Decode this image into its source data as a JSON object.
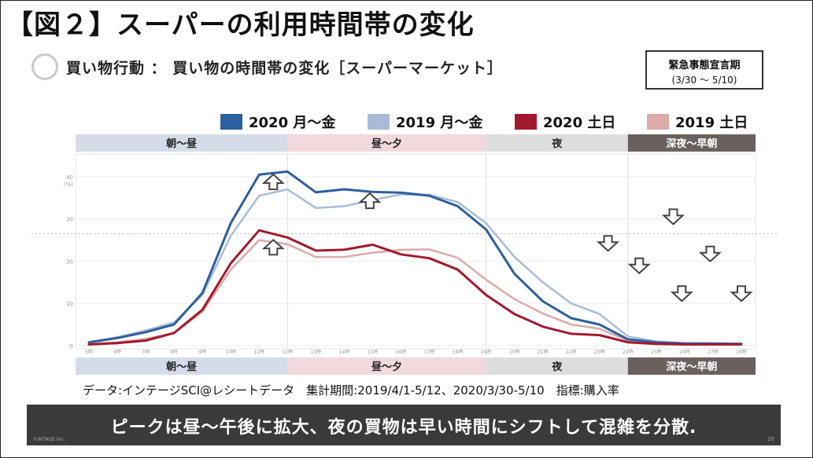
{
  "figure_title": "【図２】スーパーの利用時間帯の変化",
  "subtitle": "買い物行動 ： 買い物の時間帯の変化［スーパーマーケット］",
  "badge": {
    "line1": "緊急事態宣言期",
    "line2": "(3/30 ～ 5/10)"
  },
  "footer_note": "データ:インテージSCI@レシートデータ　集計期間:2019/4/1-5/12、2020/3/30-5/10　指標:購入率",
  "banner": "ピークは昼～午後に拡大、夜の買物は早い時間にシフトして混雑を分散.",
  "copyright": "©INTAGE Inc.",
  "page_number": "20",
  "chart_data": {
    "type": "line",
    "ylabel": "(%)",
    "ylim": [
      0,
      45
    ],
    "yticks": [
      0,
      10,
      20,
      30,
      40
    ],
    "categories": [
      "5時",
      "6時",
      "7時",
      "8時",
      "9時",
      "10時",
      "11時",
      "12時",
      "13時",
      "14時",
      "15時",
      "16時",
      "17時",
      "18時",
      "19時",
      "20時",
      "21時",
      "22時",
      "23時",
      "24時",
      "25時",
      "26時",
      "27時",
      "28時"
    ],
    "series": [
      {
        "name": "2020 月～金",
        "color": "#2c5f9e",
        "width": 3,
        "values": [
          0.8,
          1.8,
          3.2,
          5.0,
          12.5,
          29.0,
          40.5,
          41.2,
          36.3,
          37.0,
          36.4,
          36.2,
          35.5,
          33.0,
          27.5,
          17.0,
          10.5,
          6.5,
          5.0,
          1.5,
          0.8,
          0.5,
          0.5,
          0.4
        ]
      },
      {
        "name": "2019 月～金",
        "color": "#a8bcd8",
        "width": 2.5,
        "values": [
          0.8,
          2.0,
          3.6,
          5.5,
          12.0,
          26.0,
          35.5,
          37.0,
          32.6,
          33.0,
          34.5,
          35.8,
          35.7,
          34.0,
          29.0,
          21.0,
          15.0,
          10.0,
          7.5,
          2.2,
          1.0,
          0.6,
          0.5,
          0.5
        ]
      },
      {
        "name": "2020 土日",
        "color": "#a3192c",
        "width": 3,
        "values": [
          0.3,
          0.6,
          1.2,
          3.0,
          8.5,
          19.5,
          27.3,
          25.6,
          22.5,
          22.7,
          23.9,
          21.6,
          20.7,
          18.0,
          12.0,
          7.5,
          4.5,
          2.8,
          2.5,
          0.8,
          0.4,
          0.3,
          0.3,
          0.3
        ]
      },
      {
        "name": "2019 土日",
        "color": "#dcaaa8",
        "width": 2.5,
        "values": [
          0.4,
          0.8,
          1.6,
          3.0,
          8.0,
          18.0,
          25.0,
          24.0,
          21.0,
          21.0,
          22.0,
          22.7,
          22.8,
          20.8,
          15.6,
          11.0,
          7.6,
          5.0,
          4.0,
          1.2,
          0.6,
          0.4,
          0.4,
          0.3
        ]
      }
    ],
    "time_bands": [
      {
        "label": "朝～昼",
        "start": 0,
        "end": 7,
        "bg": "#d5dce9",
        "fg": "#222"
      },
      {
        "label": "昼～夕",
        "start": 7,
        "end": 14,
        "bg": "#f2d9dd",
        "fg": "#222"
      },
      {
        "label": "夜",
        "start": 14,
        "end": 19,
        "bg": "#dedddd",
        "fg": "#222"
      },
      {
        "label": "深夜～早朝",
        "start": 19,
        "end": 23,
        "bg": "#6a615f",
        "fg": "#fff"
      }
    ],
    "arrows": [
      {
        "x": 11.5,
        "y": 38.5,
        "dir": "up"
      },
      {
        "x": 14.9,
        "y": 34.0,
        "dir": "up"
      },
      {
        "x": 11.5,
        "y": 23.0,
        "dir": "up"
      },
      {
        "x": 23.3,
        "y": 24.5,
        "dir": "down"
      },
      {
        "x": 24.4,
        "y": 19.2,
        "dir": "down"
      },
      {
        "x": 25.6,
        "y": 30.8,
        "dir": "down"
      },
      {
        "x": 25.9,
        "y": 12.6,
        "dir": "down"
      },
      {
        "x": 26.9,
        "y": 22.0,
        "dir": "down"
      },
      {
        "x": 28.0,
        "y": 12.6,
        "dir": "down"
      }
    ]
  }
}
